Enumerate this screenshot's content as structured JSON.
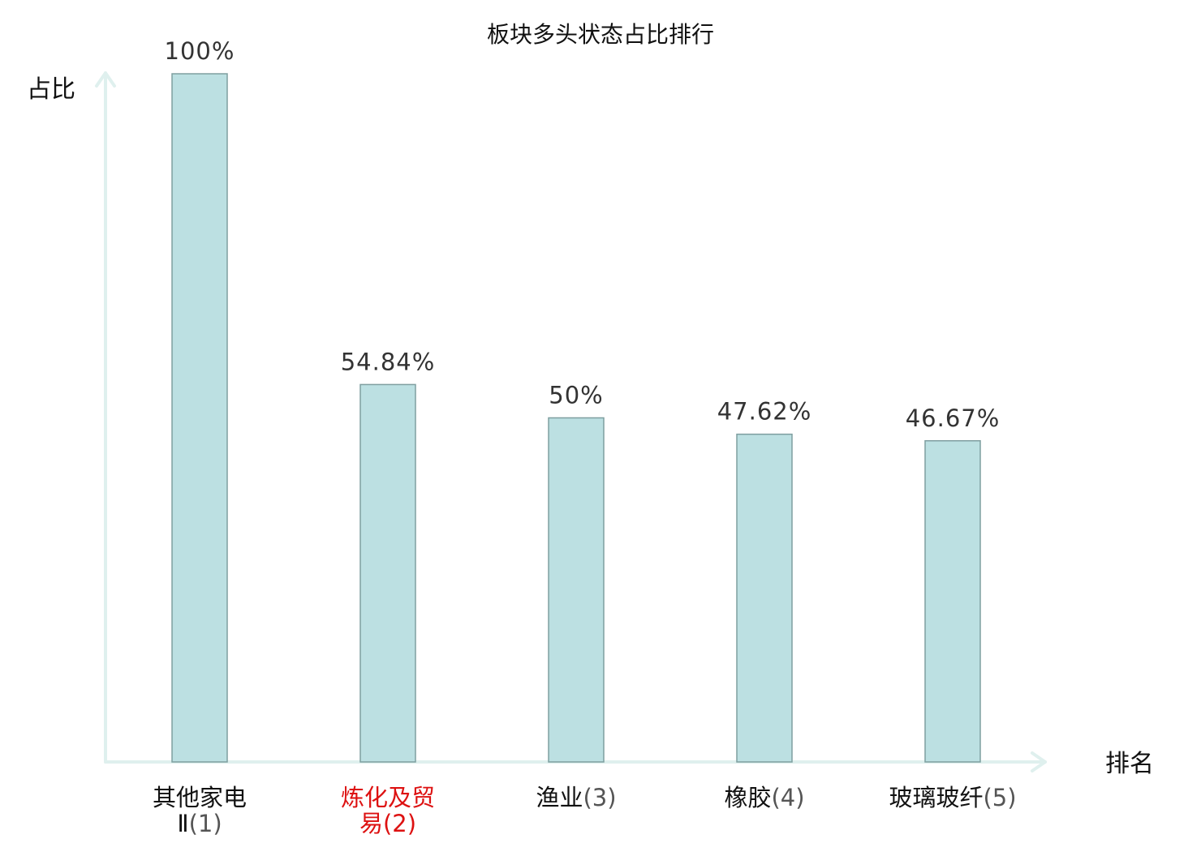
{
  "chart_data": {
    "type": "bar",
    "title": "板块多头状态占比排行",
    "ylabel": "占比",
    "xlabel": "排名",
    "ylim": [
      0,
      100
    ],
    "categories": [
      {
        "line1": "其他家电",
        "line2": "Ⅱ",
        "rank": "(1)",
        "highlight": false
      },
      {
        "line1": "炼化及贸",
        "line2": "易",
        "rank": "(2)",
        "highlight": true
      },
      {
        "line1": "渔业",
        "line2": "",
        "rank": "(3)",
        "highlight": false
      },
      {
        "line1": "橡胶",
        "line2": "",
        "rank": "(4)",
        "highlight": false
      },
      {
        "line1": "玻璃玻纤",
        "line2": "",
        "rank": "(5)",
        "highlight": false
      }
    ],
    "values": [
      100,
      54.84,
      50,
      47.62,
      46.67
    ],
    "value_labels": [
      "100%",
      "54.84%",
      "50%",
      "47.62%",
      "46.67%"
    ],
    "grid": false,
    "colors": {
      "bar_fill": "#bce0e2",
      "bar_stroke": "#7f9fa0",
      "axis": "#dff0ee",
      "highlight_text": "#dd1111",
      "normal_text": "#111111"
    }
  }
}
